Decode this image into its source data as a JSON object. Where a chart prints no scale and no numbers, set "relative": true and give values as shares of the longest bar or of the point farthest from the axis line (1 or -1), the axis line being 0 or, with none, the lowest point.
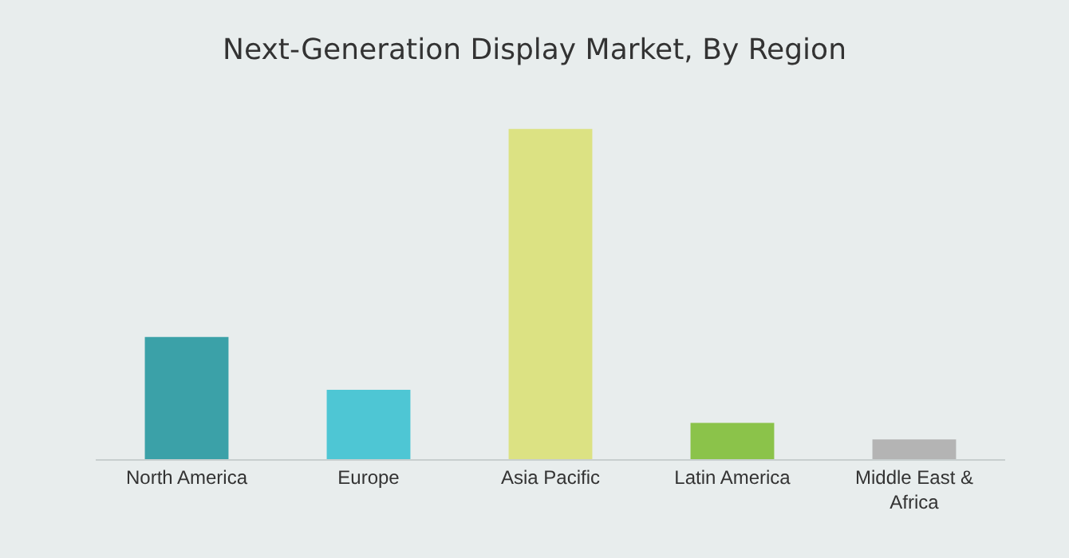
{
  "chart_data": {
    "type": "bar",
    "title": "Next-Generation Display Market, By Region",
    "relative": true,
    "categories": [
      "North America",
      "Europe",
      "Asia Pacific",
      "Latin America",
      "Middle East & Africa"
    ],
    "values": [
      0.37,
      0.21,
      1,
      0.11,
      0.06
    ],
    "colors": [
      "#3ba1a8",
      "#4ec6d4",
      "#dce283",
      "#8bc34a",
      "#b4b4b4"
    ],
    "grid": false,
    "legend": false
  }
}
